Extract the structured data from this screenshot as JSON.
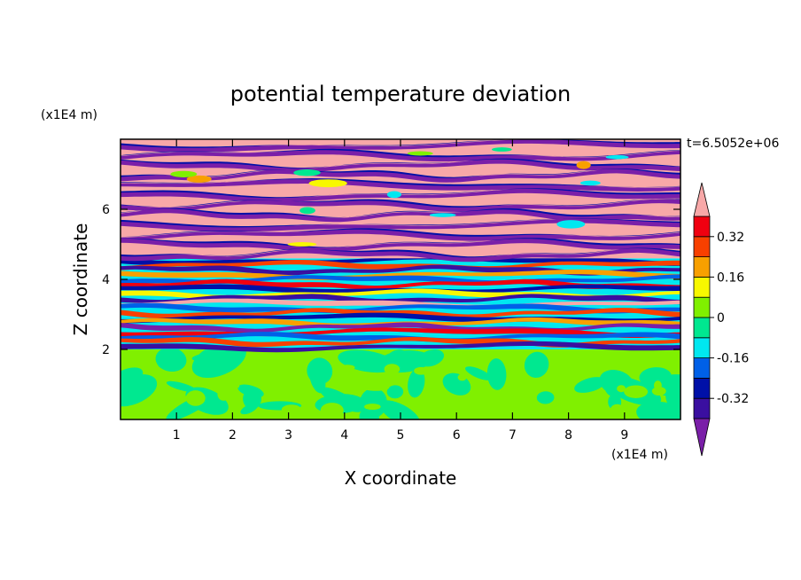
{
  "chart_data": {
    "type": "heatmap",
    "title": "potential temperature deviation",
    "xlabel": "X coordinate",
    "ylabel": "Z coordinate",
    "x_unit": "(x1E4 m)",
    "y_unit": "(x1E4 m)",
    "time_label": "t=6.5052e+06",
    "xlim": [
      0,
      10
    ],
    "ylim": [
      0,
      8
    ],
    "x_ticks": [
      1,
      2,
      3,
      4,
      5,
      6,
      7,
      8,
      9
    ],
    "y_ticks": [
      2,
      4,
      6
    ],
    "colorbar": {
      "ticks": [
        "0.32",
        "0.16",
        "0",
        "-0.16",
        "-0.32"
      ],
      "tick_values": [
        0.32,
        0.16,
        0,
        -0.16,
        -0.32
      ],
      "levels": [
        -0.4,
        -0.32,
        -0.24,
        -0.16,
        -0.08,
        0,
        0.08,
        0.16,
        0.24,
        0.32,
        0.4
      ],
      "colors": [
        "#7a1fa8",
        "#3a0fa0",
        "#0010a8",
        "#0060e8",
        "#00e8f0",
        "#00e890",
        "#80f000",
        "#f8f800",
        "#f8a000",
        "#f84000",
        "#f00010",
        "#f8a8a8"
      ],
      "extend": "both"
    },
    "layers": [
      {
        "z_range": [
          0,
          2
        ],
        "description_value": 0.0,
        "pattern": "mixed green/light-green turbulent"
      },
      {
        "z_range": [
          2,
          4.6
        ],
        "pattern": "alternating stripes full range"
      },
      {
        "z_range": [
          4.6,
          8
        ],
        "pattern": "alternating pink/purple stripes"
      }
    ]
  }
}
